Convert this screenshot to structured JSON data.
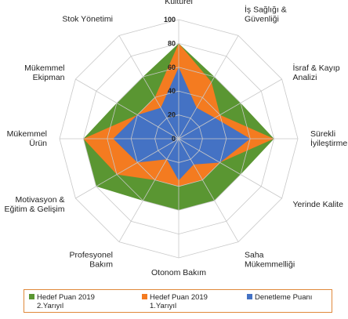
{
  "chart_data": {
    "type": "radar",
    "categories": [
      [
        "Kültürel"
      ],
      [
        "İş Sağlığı &",
        "Güvenliği"
      ],
      [
        "İsraf & Kayıp",
        "Analizi"
      ],
      [
        "Sürekli",
        "İyileştirme"
      ],
      [
        "Yerinde Kalite"
      ],
      [
        "Saha",
        "Mükemmelliği"
      ],
      [
        "Otonom Bakım"
      ],
      [
        "Profesyonel",
        "Bakım"
      ],
      [
        "Motivasyon &",
        "Eğitim & Gelişim"
      ],
      [
        "Mükemmel",
        "Ürün"
      ],
      [
        "Mükemmel",
        "Ekipman"
      ],
      [
        "Stok Yönetimi"
      ]
    ],
    "rlim": [
      0,
      100
    ],
    "ticks": [
      "0",
      "20",
      "40",
      "60",
      "80",
      "100"
    ],
    "grid": true,
    "legend_position": "bottom",
    "series": [
      {
        "name_lines": [
          "Hedef Puan 2019",
          "2.Yarıyıl"
        ],
        "color": "#5A9632",
        "values": [
          80,
          60,
          60,
          80,
          60,
          60,
          60,
          60,
          80,
          80,
          60,
          60
        ]
      },
      {
        "name_lines": [
          "Hedef Puan 2019",
          "1.Yarıyıl"
        ],
        "color": "#F47B20",
        "values": [
          80,
          55,
          40,
          80,
          40,
          40,
          40,
          40,
          60,
          80,
          40,
          40
        ]
      },
      {
        "name_lines": [
          "Denetleme Puanı"
        ],
        "color": "#4472C4",
        "values": [
          60,
          30,
          35,
          60,
          40,
          25,
          35,
          20,
          40,
          55,
          40,
          30
        ]
      }
    ]
  }
}
